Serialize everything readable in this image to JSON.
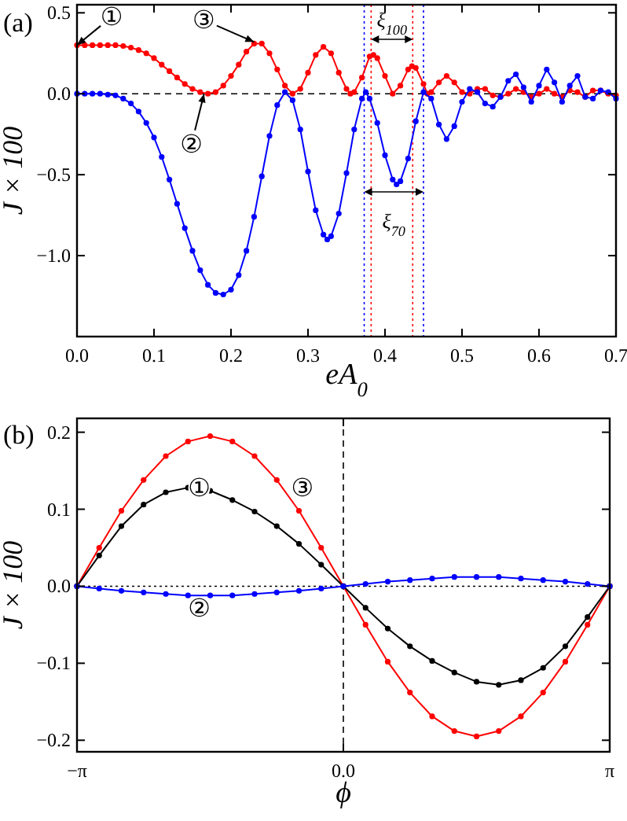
{
  "chart_data": [
    {
      "type": "line",
      "xlabel": "eA$_{0}$",
      "ylabel": "J × 100",
      "xlim": [
        0,
        0.7
      ],
      "ylim": [
        -1.5,
        0.55
      ],
      "xticks": [
        {
          "value": 0,
          "label": "0.0"
        },
        0.1,
        0.2,
        0.3,
        0.4,
        0.5,
        0.6,
        0.7
      ],
      "yticks": [
        0.5,
        {
          "value": 0,
          "label": "0.0"
        },
        {
          "value": -0.5,
          "label": "−0.5"
        },
        {
          "value": -1,
          "label": "−1.0"
        }
      ],
      "marker": "circle",
      "series": [
        {
          "color": "#ff0000",
          "x": [
            0,
            0.01,
            0.02,
            0.03,
            0.04,
            0.05,
            0.06,
            0.07,
            0.08,
            0.09,
            0.1,
            0.11,
            0.12,
            0.13,
            0.14,
            0.15,
            0.16,
            0.17,
            0.18,
            0.19,
            0.2,
            0.21,
            0.22,
            0.23,
            0.24,
            0.25,
            0.26,
            0.27,
            0.28,
            0.29,
            0.3,
            0.31,
            0.32,
            0.33,
            0.34,
            0.35,
            0.355,
            0.36,
            0.37,
            0.38,
            0.385,
            0.39,
            0.4,
            0.41,
            0.42,
            0.43,
            0.435,
            0.44,
            0.45,
            0.455,
            0.46,
            0.47,
            0.48,
            0.49,
            0.5,
            0.51,
            0.52,
            0.53,
            0.54,
            0.55,
            0.56,
            0.57,
            0.58,
            0.59,
            0.6,
            0.61,
            0.62,
            0.63,
            0.64,
            0.65,
            0.66,
            0.67,
            0.68,
            0.69,
            0.7
          ],
          "values": [
            0.3,
            0.3,
            0.3,
            0.3,
            0.3,
            0.3,
            0.295,
            0.285,
            0.27,
            0.25,
            0.22,
            0.18,
            0.14,
            0.1,
            0.06,
            0.03,
            0.01,
            0,
            0.01,
            0.05,
            0.11,
            0.18,
            0.26,
            0.31,
            0.31,
            0.25,
            0.15,
            0.05,
            0,
            0.03,
            0.13,
            0.24,
            0.29,
            0.25,
            0.13,
            0.03,
            0,
            0.01,
            0.1,
            0.23,
            0.24,
            0.22,
            0.11,
            0,
            0.05,
            0.15,
            0.17,
            0.16,
            0.06,
            0,
            0.01,
            0.07,
            0.11,
            0.07,
            0.01,
            0,
            0.03,
            0.03,
            -0.01,
            -0.02,
            0,
            0.03,
            0.01,
            -0.02,
            0,
            0.03,
            0,
            -0.02,
            0.02,
            0.01,
            -0.02,
            0.02,
            0.02,
            0,
            -0.01
          ]
        },
        {
          "color": "#0000ff",
          "x": [
            0,
            0.01,
            0.02,
            0.03,
            0.04,
            0.05,
            0.06,
            0.07,
            0.08,
            0.09,
            0.1,
            0.11,
            0.12,
            0.13,
            0.14,
            0.15,
            0.16,
            0.17,
            0.18,
            0.19,
            0.2,
            0.21,
            0.22,
            0.23,
            0.24,
            0.25,
            0.26,
            0.27,
            0.28,
            0.29,
            0.3,
            0.31,
            0.32,
            0.325,
            0.33,
            0.34,
            0.35,
            0.36,
            0.37,
            0.375,
            0.38,
            0.39,
            0.4,
            0.41,
            0.415,
            0.42,
            0.43,
            0.44,
            0.45,
            0.46,
            0.47,
            0.48,
            0.49,
            0.5,
            0.51,
            0.52,
            0.53,
            0.54,
            0.55,
            0.56,
            0.57,
            0.58,
            0.59,
            0.6,
            0.61,
            0.62,
            0.63,
            0.64,
            0.65,
            0.66,
            0.67,
            0.68,
            0.69,
            0.7
          ],
          "values": [
            0,
            0,
            0,
            0,
            -0.005,
            -0.01,
            -0.03,
            -0.06,
            -0.11,
            -0.18,
            -0.27,
            -0.39,
            -0.53,
            -0.68,
            -0.83,
            -0.97,
            -1.09,
            -1.18,
            -1.23,
            -1.24,
            -1.21,
            -1.12,
            -0.97,
            -0.76,
            -0.51,
            -0.26,
            -0.07,
            0.01,
            -0.04,
            -0.22,
            -0.48,
            -0.72,
            -0.87,
            -0.9,
            -0.88,
            -0.74,
            -0.49,
            -0.22,
            -0.03,
            0.01,
            -0.03,
            -0.18,
            -0.38,
            -0.53,
            -0.56,
            -0.54,
            -0.4,
            -0.17,
            0.01,
            -0.03,
            -0.19,
            -0.28,
            -0.2,
            -0.05,
            0.03,
            0.01,
            -0.06,
            -0.08,
            -0.02,
            0.08,
            0.12,
            0.04,
            -0.05,
            0.05,
            0.15,
            0.07,
            -0.05,
            0.05,
            0.11,
            -0.02,
            -0.03,
            0.02,
            0.01,
            -0.03
          ]
        }
      ],
      "ref_lines": [
        {
          "axis": "y",
          "value": 0,
          "color": "#000000",
          "line_style": "dashed"
        },
        {
          "axis": "x",
          "value": 0.382,
          "color": "#ff0000",
          "line_style": "dotted"
        },
        {
          "axis": "x",
          "value": 0.436,
          "color": "#ff0000",
          "line_style": "dotted"
        },
        {
          "axis": "x",
          "value": 0.373,
          "color": "#0000ff",
          "line_style": "dotted"
        },
        {
          "axis": "x",
          "value": 0.45,
          "color": "#0000ff",
          "line_style": "dotted"
        }
      ],
      "annotations": [
        "(a)",
        {
          "text": "①",
          "x": 0,
          "y": 0.3
        },
        {
          "text": "②",
          "x": 0.165,
          "y": 0
        },
        {
          "text": "③",
          "x": 0.23,
          "y": 0.32
        },
        "ξ$_{100}$",
        "ξ$_{70}$"
      ]
    },
    {
      "type": "line",
      "xlabel": "ϕ",
      "ylabel": "J × 100",
      "xlim": [
        -3.1416,
        3.1416
      ],
      "ylim": [
        -0.215,
        0.218
      ],
      "xticks": [
        {
          "value": -3.1416,
          "label": "−π"
        },
        {
          "value": 0,
          "label": "0.0"
        },
        {
          "value": 3.1416,
          "label": "π"
        }
      ],
      "yticks": [
        0.2,
        0.1,
        {
          "value": 0,
          "label": "0.0"
        },
        {
          "value": -0.1,
          "label": "−0.1"
        },
        {
          "value": -0.2,
          "label": "−0.2"
        }
      ],
      "marker": "circle",
      "series": [
        {
          "color": "#ff0000",
          "x": [
            -3.1416,
            -2.8798,
            -2.618,
            -2.3562,
            -2.0944,
            -1.8326,
            -1.5708,
            -1.309,
            -1.0472,
            -0.7854,
            -0.5236,
            -0.2618,
            0,
            0.2618,
            0.5236,
            0.7854,
            1.0472,
            1.309,
            1.5708,
            1.8326,
            2.0944,
            2.3562,
            2.618,
            2.8798,
            3.1416
          ],
          "values": [
            0,
            0.05,
            0.098,
            0.138,
            0.169,
            0.188,
            0.195,
            0.188,
            0.169,
            0.138,
            0.098,
            0.05,
            0,
            -0.05,
            -0.098,
            -0.138,
            -0.169,
            -0.188,
            -0.195,
            -0.188,
            -0.169,
            -0.138,
            -0.098,
            -0.05,
            0
          ]
        },
        {
          "color": "#000000",
          "x": [
            -3.1416,
            -2.8798,
            -2.618,
            -2.3562,
            -2.0944,
            -1.8326,
            -1.5708,
            -1.309,
            -1.0472,
            -0.7854,
            -0.5236,
            -0.2618,
            0,
            0.2618,
            0.5236,
            0.7854,
            1.0472,
            1.309,
            1.5708,
            1.8326,
            2.0944,
            2.3562,
            2.618,
            2.8798,
            3.1416
          ],
          "values": [
            0,
            0.04,
            0.078,
            0.106,
            0.122,
            0.128,
            0.124,
            0.112,
            0.097,
            0.078,
            0.055,
            0.028,
            0,
            -0.028,
            -0.055,
            -0.078,
            -0.097,
            -0.112,
            -0.124,
            -0.128,
            -0.122,
            -0.106,
            -0.078,
            -0.04,
            0
          ]
        },
        {
          "color": "#0000ff",
          "x": [
            -3.1416,
            -2.8798,
            -2.618,
            -2.3562,
            -2.0944,
            -1.8326,
            -1.5708,
            -1.309,
            -1.0472,
            -0.7854,
            -0.5236,
            -0.2618,
            0,
            0.2618,
            0.5236,
            0.7854,
            1.0472,
            1.309,
            1.5708,
            1.8326,
            2.0944,
            2.3562,
            2.618,
            2.8798,
            3.1416
          ],
          "values": [
            0,
            -0.003,
            -0.006,
            -0.008,
            -0.01,
            -0.012,
            -0.012,
            -0.012,
            -0.01,
            -0.008,
            -0.006,
            -0.003,
            0,
            0.003,
            0.006,
            0.008,
            0.01,
            0.012,
            0.012,
            0.012,
            0.01,
            0.008,
            0.006,
            0.003,
            0
          ]
        }
      ],
      "ref_lines": [
        {
          "axis": "y",
          "value": 0,
          "color": "#000000",
          "line_style": "dotted"
        },
        {
          "axis": "x",
          "value": 0,
          "color": "#000000",
          "line_style": "dashed"
        }
      ],
      "annotations": [
        "(b)",
        {
          "text": "①",
          "x": -1.7,
          "y": 0.128
        },
        {
          "text": "②",
          "x": -1.7,
          "y": -0.012
        },
        {
          "text": "③",
          "x": -0.65,
          "y": 0.118
        }
      ]
    }
  ]
}
